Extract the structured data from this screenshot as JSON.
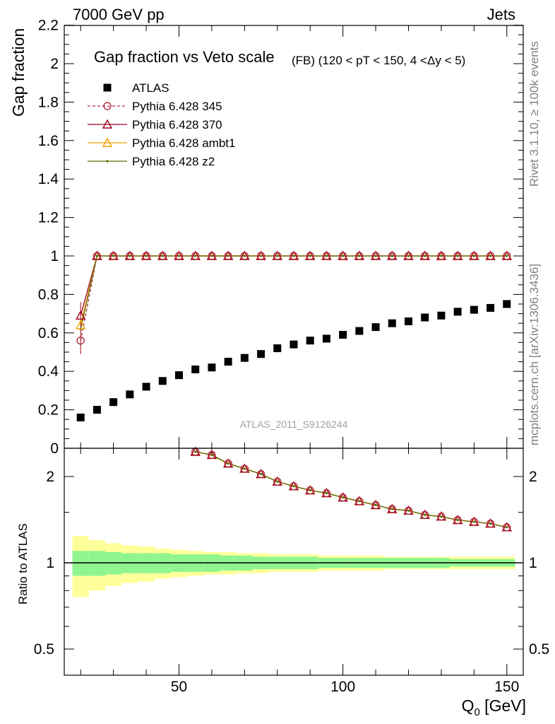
{
  "header": {
    "left": "7000 GeV pp",
    "right": "Jets"
  },
  "side_labels": {
    "top": "Rivet 3.1.10, ≥ 100k events",
    "bottom": "mcplots.cern.ch [arXiv:1306.3436]"
  },
  "watermark": "ATLAS_2011_S9126244",
  "chart_data": [
    {
      "type": "scatter",
      "title": "Gap fraction vs Veto scale",
      "subtitle": "(FB) (120 < pT < 150, 4 <Δy < 5)",
      "ylabel": "Gap fraction",
      "xlabel": "Q0 [GeV]",
      "xlim": [
        15,
        155
      ],
      "ylim": [
        0,
        2.2
      ],
      "yticks": [
        "0",
        "0.2",
        "0.4",
        "0.6",
        "0.8",
        "1",
        "1.2",
        "1.4",
        "1.6",
        "1.8",
        "2",
        "2.2"
      ],
      "legend_position": "top-left",
      "x": [
        20,
        25,
        30,
        35,
        40,
        45,
        50,
        55,
        60,
        65,
        70,
        75,
        80,
        85,
        90,
        95,
        100,
        105,
        110,
        115,
        120,
        125,
        130,
        135,
        140,
        145,
        150
      ],
      "series": [
        {
          "name": "ATLAS",
          "color": "#000000",
          "marker": "square",
          "values": [
            0.16,
            0.2,
            0.24,
            0.28,
            0.32,
            0.35,
            0.38,
            0.41,
            0.42,
            0.45,
            0.47,
            0.49,
            0.52,
            0.54,
            0.56,
            0.57,
            0.59,
            0.61,
            0.63,
            0.65,
            0.66,
            0.68,
            0.69,
            0.71,
            0.72,
            0.73,
            0.75
          ]
        },
        {
          "name": "Pythia 6.428 345",
          "color": "#b03040",
          "marker": "open-circle",
          "dashed": true,
          "values": [
            0.56,
            1,
            1,
            1,
            1,
            1,
            1,
            1,
            1,
            1,
            1,
            1,
            1,
            1,
            1,
            1,
            1,
            1,
            1,
            1,
            1,
            1,
            1,
            1,
            1,
            1,
            1
          ]
        },
        {
          "name": "Pythia 6.428 370",
          "color": "#a00020",
          "marker": "open-triangle",
          "values": [
            0.69,
            1,
            1,
            1,
            1,
            1,
            1,
            1,
            1,
            1,
            1,
            1,
            1,
            1,
            1,
            1,
            1,
            1,
            1,
            1,
            1,
            1,
            1,
            1,
            1,
            1,
            1
          ]
        },
        {
          "name": "Pythia 6.428 ambt1",
          "color": "#f0a000",
          "marker": "open-triangle",
          "values": [
            0.64,
            1,
            1,
            1,
            1,
            1,
            1,
            1,
            1,
            1,
            1,
            1,
            1,
            1,
            1,
            1,
            1,
            1,
            1,
            1,
            1,
            1,
            1,
            1,
            1,
            1,
            1
          ]
        },
        {
          "name": "Pythia 6.428 z2",
          "color": "#607000",
          "marker": "dot",
          "values": [
            0.62,
            1,
            1,
            1,
            1,
            1,
            1,
            1,
            1,
            1,
            1,
            1,
            1,
            1,
            1,
            1,
            1,
            1,
            1,
            1,
            1,
            1,
            1,
            1,
            1,
            1,
            1
          ]
        }
      ]
    },
    {
      "type": "line",
      "ylabel": "Ratio to ATLAS",
      "xlabel": "Q0 [GeV]",
      "xlim": [
        15,
        155
      ],
      "ylim": [
        0.38,
        2.45
      ],
      "log_y": true,
      "yticks": [
        "0.5",
        "1",
        "2"
      ],
      "xticks": [
        "50",
        "100",
        "150"
      ],
      "x": [
        55,
        60,
        65,
        70,
        75,
        80,
        85,
        90,
        95,
        100,
        105,
        110,
        115,
        120,
        125,
        130,
        135,
        140,
        145,
        150
      ],
      "ratio_values": [
        2.44,
        2.38,
        2.22,
        2.13,
        2.04,
        1.92,
        1.85,
        1.79,
        1.75,
        1.69,
        1.64,
        1.59,
        1.54,
        1.52,
        1.47,
        1.45,
        1.41,
        1.39,
        1.37,
        1.33
      ],
      "band_inner_halfwidth": [
        0.1,
        0.1,
        0.09,
        0.08,
        0.08,
        0.08,
        0.07,
        0.07,
        0.07,
        0.06,
        0.06,
        0.05,
        0.05,
        0.05,
        0.05,
        0.04,
        0.04,
        0.04,
        0.04,
        0.04,
        0.04,
        0.04,
        0.04,
        0.03,
        0.03,
        0.03,
        0.03
      ],
      "band_outer_halfwidth": [
        0.24,
        0.2,
        0.17,
        0.15,
        0.14,
        0.12,
        0.11,
        0.1,
        0.09,
        0.09,
        0.08,
        0.08,
        0.07,
        0.07,
        0.07,
        0.06,
        0.06,
        0.06,
        0.06,
        0.05,
        0.05,
        0.05,
        0.05,
        0.05,
        0.05,
        0.05,
        0.05
      ],
      "band_colors": {
        "inner": "#8ff58f",
        "outer": "#ffff99"
      }
    }
  ]
}
